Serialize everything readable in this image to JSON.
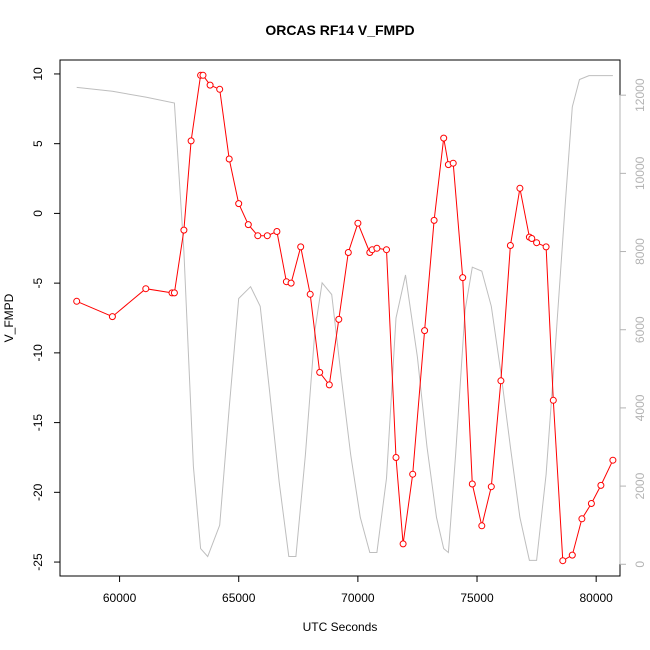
{
  "chart_data": {
    "type": "line",
    "title": "ORCAS RF14 V_FMPD",
    "xlabel": "UTC Seconds",
    "ylabel": "V_FMPD",
    "xlim": [
      57500,
      81000
    ],
    "ylim": [
      -26,
      11
    ],
    "y2lim": [
      -300,
      12900
    ],
    "x_ticks": [
      60000,
      65000,
      70000,
      75000,
      80000
    ],
    "y_ticks": [
      10,
      5,
      0,
      -5,
      -10,
      -15,
      -20,
      -25
    ],
    "y2_ticks": [
      0,
      2000,
      4000,
      6000,
      8000,
      10000,
      12000
    ],
    "grid": false,
    "series": [
      {
        "role": "primary",
        "color": "#ff0000",
        "marker": "open-circle",
        "x": [
          58200,
          59700,
          61100,
          62200,
          62300,
          62700,
          63000,
          63400,
          63500,
          63800,
          64200,
          64600,
          65000,
          65400,
          65800,
          66200,
          66600,
          67000,
          67200,
          67600,
          68000,
          68400,
          68800,
          69200,
          69600,
          70000,
          70500,
          70600,
          70800,
          71200,
          71600,
          71900,
          72300,
          72800,
          73200,
          73600,
          73800,
          74000,
          74400,
          74800,
          75200,
          75600,
          76000,
          76400,
          76800,
          77200,
          77300,
          77500,
          77900,
          78200,
          78600,
          79000,
          79400,
          79800,
          80200,
          80700
        ],
        "y": [
          -6.3,
          -7.4,
          -5.4,
          -5.7,
          -5.7,
          -1.2,
          5.2,
          9.9,
          9.9,
          9.2,
          8.9,
          3.9,
          0.7,
          -0.8,
          -1.6,
          -1.6,
          -1.3,
          -4.9,
          -5.0,
          -2.4,
          -5.8,
          -11.4,
          -12.3,
          -7.6,
          -2.8,
          -0.7,
          -2.8,
          -2.6,
          -2.5,
          -2.6,
          -17.5,
          -23.7,
          -18.7,
          -8.4,
          -0.5,
          5.4,
          3.5,
          3.6,
          -4.6,
          -19.4,
          -22.4,
          -19.6,
          -12.0,
          -2.3,
          1.8,
          -1.7,
          -1.8,
          -2.1,
          -2.4,
          -13.4,
          -24.9,
          -24.5,
          -21.9,
          -20.8,
          -19.5,
          -17.7
        ]
      },
      {
        "role": "secondary",
        "axis": "right",
        "color": "#bebebe",
        "marker": "none",
        "x": [
          58200,
          59700,
          61100,
          62300,
          62700,
          63100,
          63400,
          63700,
          64200,
          64600,
          65000,
          65500,
          65900,
          66300,
          66700,
          67100,
          67400,
          67800,
          68200,
          68500,
          68900,
          69300,
          69700,
          70100,
          70500,
          70800,
          71200,
          71600,
          72000,
          72500,
          72900,
          73300,
          73600,
          73800,
          74100,
          74500,
          74800,
          75200,
          75600,
          76000,
          76400,
          76800,
          77200,
          77500,
          77900,
          78300,
          78700,
          79000,
          79300,
          79700,
          80700
        ],
        "y": [
          12200,
          12100,
          11950,
          11800,
          8000,
          2500,
          400,
          200,
          1000,
          4000,
          6800,
          7100,
          6600,
          4400,
          2100,
          200,
          200,
          2800,
          6000,
          7200,
          6900,
          4800,
          2800,
          1200,
          300,
          300,
          2200,
          6300,
          7400,
          5300,
          3000,
          1200,
          400,
          300,
          2800,
          6500,
          7600,
          7500,
          6600,
          4900,
          3000,
          1200,
          100,
          100,
          2300,
          5700,
          9200,
          11700,
          12400,
          12500,
          12500
        ]
      }
    ]
  }
}
